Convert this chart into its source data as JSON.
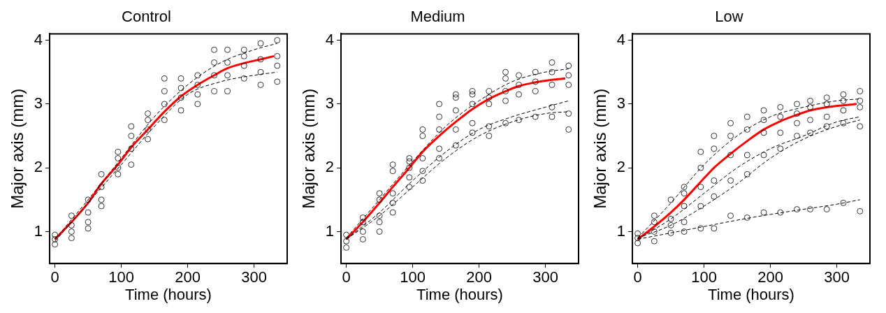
{
  "chart_data": [
    {
      "type": "scatter",
      "title": "Control",
      "xlabel": "Time (hours)",
      "ylabel": "Major axis (mm)",
      "xlim": [
        -8,
        350
      ],
      "ylim": [
        0.5,
        4.1
      ],
      "xticks": [
        0,
        100,
        200,
        300
      ],
      "yticks": [
        1,
        2,
        3,
        4
      ],
      "grid": false,
      "legend": false,
      "series": [
        {
          "type": "scatter",
          "color": "#000000",
          "marker": "circle",
          "x": [
            0,
            0,
            0,
            25,
            25,
            25,
            25,
            50,
            50,
            50,
            50,
            70,
            70,
            70,
            70,
            95,
            95,
            95,
            95,
            115,
            115,
            115,
            115,
            140,
            140,
            140,
            140,
            165,
            165,
            165,
            165,
            190,
            190,
            190,
            190,
            215,
            215,
            215,
            215,
            240,
            240,
            240,
            240,
            260,
            260,
            260,
            260,
            285,
            285,
            285,
            285,
            310,
            310,
            310,
            310,
            335,
            335,
            335,
            335
          ],
          "values": [
            0.8,
            0.88,
            0.95,
            0.9,
            1.0,
            1.1,
            1.25,
            1.05,
            1.15,
            1.3,
            1.5,
            1.4,
            1.5,
            1.7,
            1.9,
            1.9,
            2.0,
            2.15,
            2.25,
            2.05,
            2.3,
            2.5,
            2.65,
            2.45,
            2.6,
            2.75,
            2.85,
            2.75,
            3.0,
            3.2,
            3.4,
            2.9,
            3.1,
            3.25,
            3.4,
            3.0,
            3.15,
            3.3,
            3.45,
            3.2,
            3.45,
            3.65,
            3.85,
            3.2,
            3.45,
            3.65,
            3.85,
            3.4,
            3.6,
            3.75,
            3.85,
            3.3,
            3.5,
            3.7,
            3.95,
            3.35,
            3.6,
            3.75,
            4.0
          ]
        },
        {
          "type": "line",
          "color": "#000000",
          "line_style": "dashed",
          "marker": "none",
          "x": [
            0,
            50,
            100,
            150,
            200,
            250,
            300,
            335
          ],
          "values": [
            0.88,
            1.5,
            2.15,
            2.8,
            3.3,
            3.65,
            3.85,
            3.95
          ]
        },
        {
          "type": "line",
          "color": "#000000",
          "line_style": "dashed",
          "marker": "none",
          "x": [
            0,
            50,
            100,
            150,
            200,
            250,
            300,
            335
          ],
          "values": [
            0.85,
            1.45,
            2.05,
            2.65,
            3.15,
            3.35,
            3.45,
            3.5
          ]
        },
        {
          "type": "line",
          "color": "#ff0000",
          "line_style": "solid",
          "marker": "none",
          "x": [
            0,
            25,
            50,
            70,
            95,
            115,
            140,
            165,
            190,
            215,
            240,
            260,
            285,
            310,
            330
          ],
          "values": [
            0.88,
            1.15,
            1.45,
            1.75,
            2.05,
            2.32,
            2.6,
            2.88,
            3.12,
            3.3,
            3.45,
            3.56,
            3.64,
            3.7,
            3.75
          ]
        }
      ]
    },
    {
      "type": "scatter",
      "title": "Medium",
      "xlabel": "Time (hours)",
      "ylabel": "Major axis (mm)",
      "xlim": [
        -8,
        350
      ],
      "ylim": [
        0.5,
        4.1
      ],
      "xticks": [
        0,
        100,
        200,
        300
      ],
      "yticks": [
        1,
        2,
        3,
        4
      ],
      "grid": false,
      "legend": false,
      "series": [
        {
          "type": "scatter",
          "color": "#000000",
          "marker": "circle",
          "x": [
            0,
            0,
            0,
            25,
            25,
            25,
            25,
            50,
            50,
            50,
            50,
            50,
            70,
            70,
            70,
            70,
            70,
            95,
            95,
            95,
            95,
            95,
            115,
            115,
            115,
            115,
            115,
            140,
            140,
            140,
            140,
            140,
            165,
            165,
            165,
            165,
            165,
            190,
            190,
            190,
            190,
            190,
            215,
            215,
            215,
            215,
            215,
            240,
            240,
            240,
            240,
            240,
            260,
            260,
            260,
            260,
            285,
            285,
            285,
            285,
            310,
            310,
            310,
            310,
            310,
            335,
            335,
            335,
            335,
            335
          ],
          "values": [
            0.75,
            0.85,
            0.95,
            0.88,
            1.0,
            1.15,
            1.22,
            1.0,
            1.15,
            1.25,
            1.5,
            1.6,
            1.3,
            1.45,
            1.6,
            1.95,
            2.05,
            1.7,
            1.85,
            2.0,
            2.1,
            2.15,
            1.8,
            1.95,
            2.15,
            2.5,
            2.6,
            2.15,
            2.3,
            2.6,
            2.8,
            3.0,
            2.35,
            2.6,
            2.9,
            3.1,
            3.15,
            2.55,
            2.7,
            3.0,
            3.15,
            3.2,
            2.5,
            2.65,
            3.0,
            3.1,
            3.2,
            2.7,
            3.05,
            3.2,
            3.4,
            3.5,
            2.75,
            3.15,
            3.3,
            3.45,
            2.8,
            3.2,
            3.35,
            3.5,
            2.8,
            2.95,
            3.3,
            3.5,
            3.65,
            2.6,
            2.85,
            3.3,
            3.45,
            3.6
          ]
        },
        {
          "type": "line",
          "color": "#000000",
          "line_style": "dashed",
          "marker": "none",
          "x": [
            0,
            50,
            100,
            150,
            200,
            250,
            300,
            335
          ],
          "values": [
            0.9,
            1.5,
            2.1,
            2.65,
            3.05,
            3.35,
            3.5,
            3.55
          ]
        },
        {
          "type": "line",
          "color": "#000000",
          "line_style": "dashed",
          "marker": "none",
          "x": [
            0,
            50,
            100,
            150,
            200,
            250,
            300,
            335
          ],
          "values": [
            0.88,
            1.3,
            1.8,
            2.25,
            2.6,
            2.8,
            2.95,
            3.05
          ]
        },
        {
          "type": "line",
          "color": "#000000",
          "line_style": "dashed",
          "marker": "none",
          "x": [
            0,
            50,
            100,
            150,
            200,
            250,
            300,
            335
          ],
          "values": [
            0.88,
            1.25,
            1.7,
            2.15,
            2.5,
            2.72,
            2.85,
            2.88
          ]
        },
        {
          "type": "line",
          "color": "#ff0000",
          "line_style": "solid",
          "marker": "none",
          "x": [
            0,
            25,
            50,
            70,
            95,
            115,
            140,
            165,
            190,
            215,
            240,
            260,
            285,
            310,
            330
          ],
          "values": [
            0.88,
            1.15,
            1.45,
            1.7,
            2.0,
            2.25,
            2.5,
            2.72,
            2.92,
            3.08,
            3.2,
            3.28,
            3.34,
            3.38,
            3.4
          ]
        }
      ]
    },
    {
      "type": "scatter",
      "title": "Low",
      "xlabel": "Time (hours)",
      "ylabel": "Major axis (mm)",
      "xlim": [
        -8,
        350
      ],
      "ylim": [
        0.5,
        4.1
      ],
      "xticks": [
        0,
        100,
        200,
        300
      ],
      "yticks": [
        1,
        2,
        3,
        4
      ],
      "grid": false,
      "legend": false,
      "series": [
        {
          "type": "scatter",
          "color": "#000000",
          "marker": "circle",
          "x": [
            0,
            0,
            0,
            25,
            25,
            25,
            25,
            50,
            50,
            50,
            50,
            70,
            70,
            70,
            70,
            70,
            95,
            95,
            95,
            95,
            95,
            115,
            115,
            115,
            115,
            115,
            140,
            140,
            140,
            140,
            140,
            165,
            165,
            165,
            165,
            165,
            190,
            190,
            190,
            190,
            190,
            215,
            215,
            215,
            215,
            215,
            240,
            240,
            240,
            240,
            240,
            260,
            260,
            260,
            260,
            260,
            285,
            285,
            285,
            285,
            285,
            310,
            310,
            310,
            310,
            310,
            335,
            335,
            335,
            335,
            335
          ],
          "values": [
            0.82,
            0.9,
            0.97,
            0.85,
            1.0,
            1.15,
            1.25,
            0.98,
            1.1,
            1.2,
            1.5,
            1.0,
            1.15,
            1.4,
            1.6,
            1.7,
            1.05,
            1.4,
            1.7,
            2.0,
            2.25,
            1.05,
            1.55,
            1.8,
            2.3,
            2.5,
            1.25,
            1.8,
            2.2,
            2.5,
            2.7,
            1.22,
            1.9,
            2.2,
            2.6,
            2.8,
            1.3,
            2.2,
            2.55,
            2.75,
            2.9,
            1.3,
            2.3,
            2.55,
            2.8,
            2.95,
            1.35,
            2.5,
            2.7,
            2.85,
            3.0,
            1.35,
            2.55,
            2.75,
            2.95,
            3.05,
            1.35,
            2.65,
            2.8,
            3.0,
            3.1,
            1.45,
            2.7,
            2.9,
            3.05,
            3.15,
            1.32,
            2.65,
            2.95,
            3.05,
            3.2
          ]
        },
        {
          "type": "line",
          "color": "#000000",
          "line_style": "dashed",
          "marker": "none",
          "x": [
            0,
            50,
            100,
            150,
            200,
            250,
            300,
            335
          ],
          "values": [
            0.9,
            1.45,
            2.05,
            2.5,
            2.8,
            2.95,
            3.05,
            3.08
          ]
        },
        {
          "type": "line",
          "color": "#000000",
          "line_style": "dashed",
          "marker": "none",
          "x": [
            0,
            50,
            100,
            150,
            200,
            250,
            300,
            335
          ],
          "values": [
            0.88,
            1.2,
            1.6,
            2.0,
            2.3,
            2.5,
            2.72,
            2.8
          ]
        },
        {
          "type": "line",
          "color": "#000000",
          "line_style": "dashed",
          "marker": "none",
          "x": [
            0,
            50,
            100,
            150,
            200,
            250,
            300,
            335
          ],
          "values": [
            0.9,
            1.1,
            1.4,
            1.75,
            2.15,
            2.45,
            2.65,
            2.75
          ]
        },
        {
          "type": "line",
          "color": "#000000",
          "line_style": "dashed",
          "marker": "none",
          "x": [
            0,
            50,
            100,
            150,
            200,
            250,
            300,
            335
          ],
          "values": [
            0.88,
            0.98,
            1.08,
            1.18,
            1.27,
            1.35,
            1.43,
            1.5
          ]
        },
        {
          "type": "line",
          "color": "#ff0000",
          "line_style": "solid",
          "marker": "none",
          "x": [
            0,
            25,
            50,
            70,
            95,
            115,
            140,
            165,
            190,
            215,
            240,
            260,
            285,
            310,
            330
          ],
          "values": [
            0.88,
            1.08,
            1.3,
            1.5,
            1.78,
            2.0,
            2.22,
            2.42,
            2.6,
            2.73,
            2.83,
            2.9,
            2.95,
            2.98,
            3.0
          ]
        }
      ]
    }
  ]
}
